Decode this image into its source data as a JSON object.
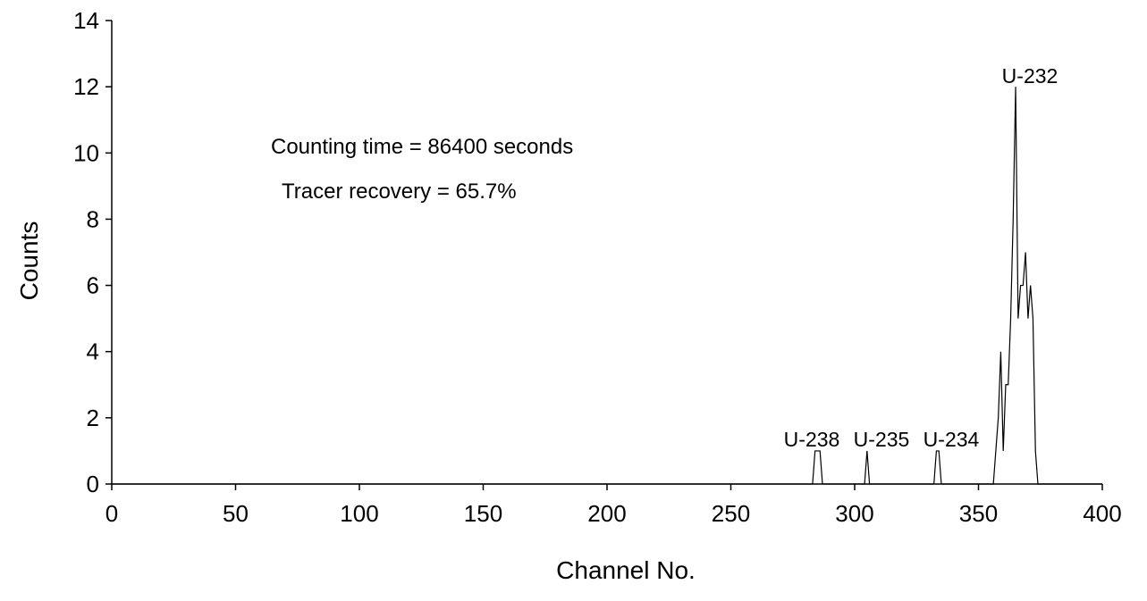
{
  "chart_data": {
    "type": "line",
    "x_label": "Channel No.",
    "y_label": "Counts",
    "x": [
      0,
      283,
      284,
      286,
      287,
      304,
      305,
      306,
      332,
      333,
      334,
      335,
      356,
      357,
      358,
      359,
      360,
      361,
      362,
      363,
      364,
      365,
      366,
      367,
      368,
      369,
      370,
      371,
      372,
      373,
      374,
      400
    ],
    "series": [
      {
        "color": "#000000",
        "values": [
          0,
          0,
          1,
          1,
          0,
          0,
          1,
          0,
          0,
          1,
          1,
          0,
          0,
          1,
          2,
          4,
          1,
          3,
          3,
          5,
          8,
          12,
          5,
          6,
          6,
          7,
          5,
          6,
          5,
          1,
          0,
          0
        ]
      }
    ],
    "xlim": [
      0,
      400
    ],
    "xticks": [
      0,
      50,
      100,
      150,
      200,
      250,
      300,
      350,
      400
    ],
    "ylim": [
      0,
      14
    ],
    "yticks": [
      0,
      2,
      4,
      6,
      8,
      10,
      12,
      14
    ],
    "grid": false,
    "annotations": [
      "Counting time = 86400 seconds",
      "Tracer recovery = 65.7%",
      "U-238",
      "U-235",
      "U-234",
      "U-232"
    ]
  }
}
